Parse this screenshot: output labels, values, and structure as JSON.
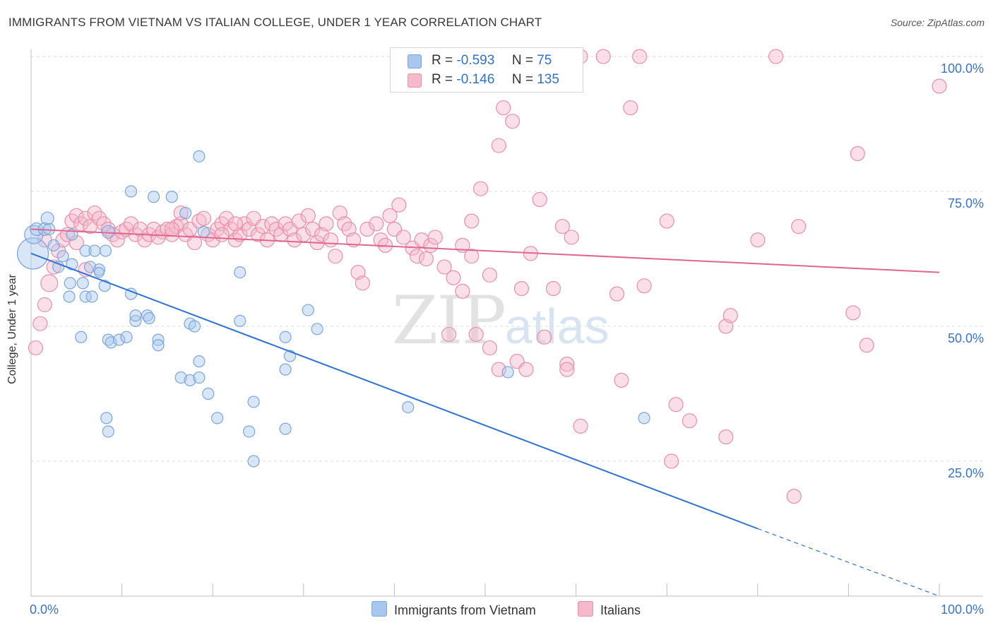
{
  "title": "IMMIGRANTS FROM VIETNAM VS ITALIAN COLLEGE, UNDER 1 YEAR CORRELATION CHART",
  "source": "Source: ZipAtlas.com",
  "watermark": {
    "zip": "ZIP",
    "atlas": "atlas"
  },
  "legend": {
    "r_label": "R =",
    "n_label": "N =",
    "entries": [
      {
        "name": "Immigrants from Vietnam",
        "r": "-0.593",
        "n": "75",
        "color": "#a9c7ee",
        "stroke": "#7aa6dc"
      },
      {
        "name": "Italians",
        "r": "-0.146",
        "n": "135",
        "color": "#f6b8cb",
        "stroke": "#e98fab"
      }
    ]
  },
  "colors": {
    "blue_line": "#2e73d2",
    "pink_line": "#e0668f",
    "grid": "#dddddd",
    "tick_label": "#3a73c6"
  },
  "chart_data": {
    "type": "scatter",
    "title": "IMMIGRANTS FROM VIETNAM VS ITALIAN COLLEGE, UNDER 1 YEAR CORRELATION CHART",
    "xlabel": "",
    "ylabel": "College, Under 1 year",
    "xlim": [
      0,
      100
    ],
    "ylim": [
      0,
      101
    ],
    "x_tick_labels": [
      "0.0%",
      "100.0%"
    ],
    "y_ticks": [
      25,
      50,
      75,
      100
    ],
    "y_tick_labels": [
      "25.0%",
      "50.0%",
      "75.0%",
      "100.0%"
    ],
    "grid": true,
    "series": [
      {
        "name": "Immigrants from Vietnam",
        "r": -0.593,
        "n": 75,
        "trend": {
          "x0": 0,
          "y0": 63.5,
          "x1": 80,
          "y1": 12.5,
          "dash_to_x": 100,
          "dash_to_y": 0
        },
        "points": [
          [
            0.2,
            63.5,
            22
          ],
          [
            0.3,
            67,
            13
          ],
          [
            0.6,
            68,
            9
          ],
          [
            1.5,
            68,
            9
          ],
          [
            1.8,
            70,
            9
          ],
          [
            2.0,
            68,
            8
          ],
          [
            4.5,
            67,
            8
          ],
          [
            8.5,
            67.5,
            9
          ],
          [
            2.5,
            65,
            8
          ],
          [
            3.5,
            63,
            8
          ],
          [
            6,
            64,
            8
          ],
          [
            7.0,
            64,
            8
          ],
          [
            8.2,
            64,
            8
          ],
          [
            3.0,
            61,
            8
          ],
          [
            4.5,
            61.5,
            8
          ],
          [
            6.5,
            61,
            8
          ],
          [
            7.5,
            60.5,
            8
          ],
          [
            7.5,
            60,
            7
          ],
          [
            4.3,
            58,
            8
          ],
          [
            5.7,
            58,
            8
          ],
          [
            8.1,
            57.5,
            8
          ],
          [
            4.2,
            55.5,
            8
          ],
          [
            6.0,
            55.5,
            8
          ],
          [
            6.7,
            55.5,
            8
          ],
          [
            11,
            75,
            8
          ],
          [
            13.5,
            74,
            8
          ],
          [
            15.5,
            74,
            8
          ],
          [
            17.0,
            71,
            8
          ],
          [
            11.0,
            56,
            8
          ],
          [
            11.5,
            51,
            8
          ],
          [
            11.5,
            52,
            8
          ],
          [
            12.8,
            52,
            8
          ],
          [
            13.0,
            51.5,
            8
          ],
          [
            5.5,
            48,
            8
          ],
          [
            8.5,
            47.5,
            8
          ],
          [
            8.8,
            47,
            8
          ],
          [
            9.7,
            47.5,
            8
          ],
          [
            10.5,
            48,
            8
          ],
          [
            14.0,
            47.5,
            8
          ],
          [
            14.0,
            46.5,
            8
          ],
          [
            16.5,
            40.5,
            8
          ],
          [
            17.5,
            40,
            8
          ],
          [
            18.5,
            40.5,
            8
          ],
          [
            17.5,
            50.5,
            8
          ],
          [
            18.0,
            50,
            8
          ],
          [
            18.5,
            43.5,
            8
          ],
          [
            19.5,
            37.5,
            8
          ],
          [
            20.5,
            33,
            8
          ],
          [
            8.3,
            33,
            8
          ],
          [
            8.5,
            30.5,
            8
          ],
          [
            23.0,
            60,
            8
          ],
          [
            23.0,
            51,
            8
          ],
          [
            24.5,
            36,
            8
          ],
          [
            24.0,
            30.5,
            8
          ],
          [
            24.5,
            25,
            8
          ],
          [
            28.0,
            48,
            8
          ],
          [
            28.5,
            44.5,
            8
          ],
          [
            28.0,
            42,
            8
          ],
          [
            28.0,
            31,
            8
          ],
          [
            30.5,
            53,
            8
          ],
          [
            31.5,
            49.5,
            8
          ],
          [
            41.5,
            35,
            8
          ],
          [
            52.5,
            41.5,
            8
          ],
          [
            67.5,
            33,
            8
          ],
          [
            19.0,
            67.5,
            8
          ],
          [
            18.5,
            81.5,
            8
          ]
        ]
      },
      {
        "name": "Italians",
        "r": -0.146,
        "n": 135,
        "trend": {
          "x0": 0,
          "y0": 68,
          "x1": 100,
          "y1": 60
        },
        "points": [
          [
            0.5,
            46,
            10
          ],
          [
            1.0,
            50.5,
            10
          ],
          [
            1.5,
            54,
            10
          ],
          [
            2.0,
            58,
            12
          ],
          [
            2.5,
            61,
            10
          ],
          [
            3.0,
            64,
            10
          ],
          [
            3.5,
            66,
            10
          ],
          [
            4.0,
            67,
            10
          ],
          [
            4.5,
            69.5,
            10
          ],
          [
            5.0,
            70.5,
            10
          ],
          [
            5.5,
            69,
            10
          ],
          [
            6.0,
            70,
            10
          ],
          [
            6.5,
            68.5,
            10
          ],
          [
            7.0,
            71,
            10
          ],
          [
            7.5,
            70,
            10
          ],
          [
            8.0,
            69,
            10
          ],
          [
            8.5,
            68,
            10
          ],
          [
            9.0,
            67,
            10
          ],
          [
            9.5,
            66,
            10
          ],
          [
            10,
            67.5,
            10
          ],
          [
            10.5,
            68,
            10
          ],
          [
            11.0,
            69,
            10
          ],
          [
            11.5,
            67,
            10
          ],
          [
            12.0,
            68,
            10
          ],
          [
            12.5,
            66,
            10
          ],
          [
            13.0,
            67,
            10
          ],
          [
            13.5,
            68,
            10
          ],
          [
            14.0,
            66.5,
            10
          ],
          [
            14.5,
            67.5,
            10
          ],
          [
            15.0,
            68,
            10
          ],
          [
            15.5,
            67,
            10
          ],
          [
            16.0,
            68.5,
            10
          ],
          [
            16.5,
            69,
            10
          ],
          [
            17.0,
            67,
            10
          ],
          [
            17.5,
            68,
            10
          ],
          [
            18.0,
            65.5,
            10
          ],
          [
            18.5,
            69.5,
            10
          ],
          [
            19.0,
            70,
            10
          ],
          [
            19.5,
            67,
            10
          ],
          [
            20.0,
            66,
            10
          ],
          [
            20.5,
            68,
            10
          ],
          [
            21.0,
            69,
            10
          ],
          [
            21.5,
            70,
            10
          ],
          [
            22.0,
            68,
            10
          ],
          [
            22.5,
            66,
            10
          ],
          [
            23.0,
            67,
            10
          ],
          [
            23.5,
            69,
            10
          ],
          [
            24.0,
            68,
            10
          ],
          [
            24.5,
            70,
            10
          ],
          [
            25.0,
            67,
            10
          ],
          [
            25.5,
            68.5,
            10
          ],
          [
            26.0,
            66,
            10
          ],
          [
            26.5,
            69,
            10
          ],
          [
            27.0,
            68,
            10
          ],
          [
            27.5,
            67,
            10
          ],
          [
            28.0,
            69,
            10
          ],
          [
            28.5,
            68,
            10
          ],
          [
            29.0,
            66,
            10
          ],
          [
            29.5,
            69.5,
            10
          ],
          [
            30.0,
            67,
            10
          ],
          [
            30.5,
            70.5,
            10
          ],
          [
            31.0,
            68,
            10
          ],
          [
            31.5,
            65.5,
            10
          ],
          [
            32.0,
            67,
            10
          ],
          [
            32.5,
            69,
            10
          ],
          [
            33.0,
            66,
            10
          ],
          [
            33.5,
            63,
            10
          ],
          [
            34.0,
            71,
            10
          ],
          [
            34.5,
            69,
            10
          ],
          [
            35.0,
            68,
            10
          ],
          [
            35.5,
            66,
            10
          ],
          [
            36.0,
            60,
            10
          ],
          [
            36.5,
            58,
            10
          ],
          [
            37.0,
            68,
            10
          ],
          [
            38.0,
            69,
            10
          ],
          [
            38.5,
            66,
            10
          ],
          [
            39.0,
            65,
            10
          ],
          [
            39.5,
            70.5,
            10
          ],
          [
            40.0,
            68,
            10
          ],
          [
            40.5,
            72.5,
            10
          ],
          [
            41.0,
            66.5,
            10
          ],
          [
            42.0,
            64.5,
            10
          ],
          [
            42.5,
            63,
            10
          ],
          [
            43.0,
            66,
            10
          ],
          [
            43.5,
            62.5,
            10
          ],
          [
            44.0,
            65,
            10
          ],
          [
            44.5,
            66.5,
            10
          ],
          [
            45.5,
            61,
            10
          ],
          [
            46,
            48.5,
            10
          ],
          [
            46.5,
            59,
            10
          ],
          [
            47.5,
            65,
            10
          ],
          [
            47.5,
            56.5,
            10
          ],
          [
            48.5,
            69.5,
            10
          ],
          [
            48.5,
            63,
            10
          ],
          [
            49.0,
            48.5,
            10
          ],
          [
            49.5,
            75.5,
            10
          ],
          [
            50.5,
            59.5,
            10
          ],
          [
            50.5,
            46,
            10
          ],
          [
            51.5,
            42,
            10
          ],
          [
            51.5,
            83.5,
            10
          ],
          [
            52.0,
            90.5,
            10
          ],
          [
            53.0,
            88,
            10
          ],
          [
            53.5,
            43.5,
            10
          ],
          [
            54.0,
            57,
            10
          ],
          [
            54.5,
            42,
            10
          ],
          [
            55,
            63.5,
            10
          ],
          [
            56,
            73.5,
            10
          ],
          [
            56.5,
            48,
            10
          ],
          [
            57.5,
            57,
            10
          ],
          [
            58.5,
            68.5,
            10
          ],
          [
            59.0,
            43,
            10
          ],
          [
            59.0,
            42,
            10
          ],
          [
            59.5,
            66.5,
            10
          ],
          [
            60.5,
            31.5,
            10
          ],
          [
            60.5,
            100,
            10
          ],
          [
            63.0,
            100,
            10
          ],
          [
            64.5,
            56,
            10
          ],
          [
            65.0,
            40,
            10
          ],
          [
            66.0,
            90.5,
            10
          ],
          [
            67.0,
            100,
            10
          ],
          [
            67.5,
            57.5,
            10
          ],
          [
            70.0,
            69.5,
            10
          ],
          [
            70.5,
            25,
            10
          ],
          [
            71.0,
            35.5,
            10
          ],
          [
            72.5,
            32.5,
            10
          ],
          [
            76.5,
            50,
            10
          ],
          [
            76.5,
            29.5,
            10
          ],
          [
            77.0,
            52,
            10
          ],
          [
            80.0,
            66,
            10
          ],
          [
            82.0,
            100,
            10
          ],
          [
            84.0,
            18.5,
            10
          ],
          [
            84.5,
            68.5,
            10
          ],
          [
            90.5,
            52.5,
            10
          ],
          [
            91.0,
            82,
            10
          ],
          [
            92.0,
            46.5,
            10
          ],
          [
            100.0,
            94.5,
            10
          ],
          [
            16.5,
            71,
            10
          ],
          [
            21,
            67,
            10
          ],
          [
            6.0,
            60.5,
            10
          ],
          [
            1.5,
            66,
            10
          ],
          [
            5.0,
            65.5,
            10
          ],
          [
            15.5,
            68,
            10
          ],
          [
            22.5,
            69,
            10
          ]
        ]
      }
    ]
  }
}
